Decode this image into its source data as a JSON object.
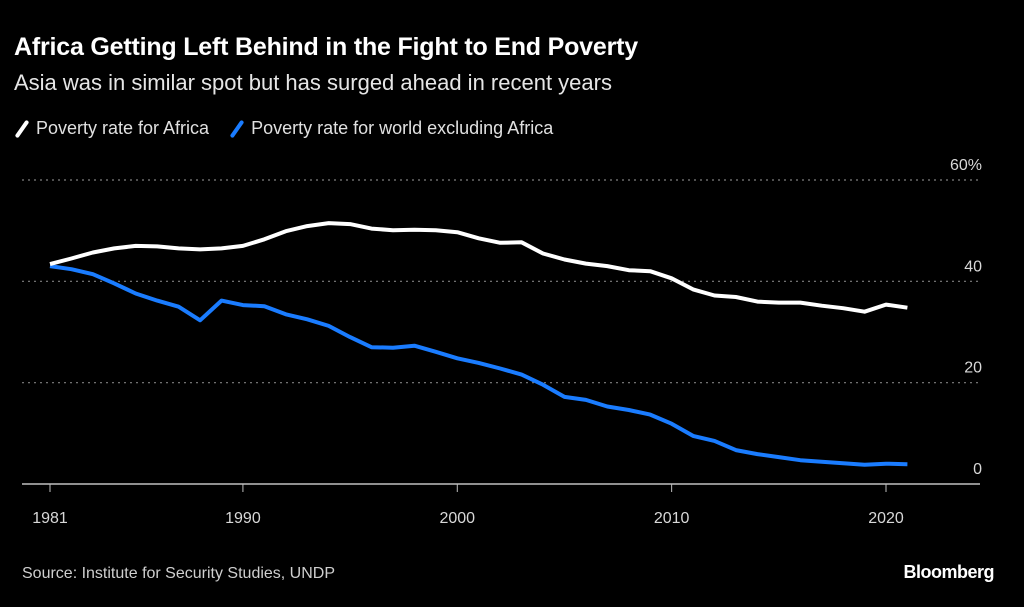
{
  "header": {
    "title": "Africa Getting Left Behind in the Fight to End Poverty",
    "subtitle": "Asia was in similar spot but has surged ahead in recent years"
  },
  "footer": {
    "source": "Source: Institute for Security Studies, UNDP",
    "brand": "Bloomberg"
  },
  "colors": {
    "background": "#000000",
    "africa": "#ffffff",
    "world_ex_africa": "#1a7cff",
    "grid": "#808080",
    "axis": "#bfbfbf"
  },
  "chart_data": {
    "type": "line",
    "title": "Africa Getting Left Behind in the Fight to End Poverty",
    "subtitle": "Asia was in similar spot but has surged ahead in recent years",
    "xlabel": "",
    "ylabel": "",
    "x": [
      1981,
      1982,
      1983,
      1984,
      1985,
      1986,
      1987,
      1988,
      1989,
      1990,
      1991,
      1992,
      1993,
      1994,
      1995,
      1996,
      1997,
      1998,
      1999,
      2000,
      2001,
      2002,
      2003,
      2004,
      2005,
      2006,
      2007,
      2008,
      2009,
      2010,
      2011,
      2012,
      2013,
      2014,
      2015,
      2016,
      2017,
      2018,
      2019,
      2020,
      2021
    ],
    "xlim": [
      1980,
      2024
    ],
    "xticks": [
      1981,
      1990,
      2000,
      2010,
      2020
    ],
    "xtick_labels": [
      "1981",
      "1990",
      "2000",
      "2010",
      "2020"
    ],
    "ylim": [
      0,
      60
    ],
    "yticks": [
      0,
      20,
      40,
      60
    ],
    "ytick_labels": [
      "0",
      "20",
      "40",
      "60%"
    ],
    "grid": true,
    "y_axis_side": "right",
    "legend_position": "top-left",
    "series": [
      {
        "name": "Poverty rate for Africa",
        "color": "#ffffff",
        "values": [
          43.4,
          44.5,
          45.7,
          46.5,
          47.0,
          46.9,
          46.5,
          46.3,
          46.5,
          47.0,
          48.3,
          49.9,
          50.9,
          51.5,
          51.3,
          50.4,
          50.1,
          50.2,
          50.1,
          49.7,
          48.5,
          47.6,
          47.7,
          45.5,
          44.3,
          43.5,
          43.0,
          42.2,
          42.0,
          40.6,
          38.4,
          37.2,
          36.9,
          36.0,
          35.8,
          35.8,
          35.2,
          34.7,
          34.0,
          35.4,
          34.8
        ]
      },
      {
        "name": "Poverty rate for world excluding Africa",
        "color": "#1a7cff",
        "values": [
          43.0,
          42.4,
          41.4,
          39.6,
          37.6,
          36.2,
          35.0,
          32.3,
          36.2,
          35.3,
          35.1,
          33.5,
          32.5,
          31.2,
          29.0,
          27.0,
          26.9,
          27.3,
          26.1,
          24.8,
          23.9,
          22.8,
          21.6,
          19.6,
          17.2,
          16.6,
          15.3,
          14.6,
          13.7,
          11.9,
          9.5,
          8.5,
          6.7,
          5.9,
          5.3,
          4.7,
          4.4,
          4.1,
          3.8,
          4.0,
          3.9
        ]
      }
    ]
  }
}
